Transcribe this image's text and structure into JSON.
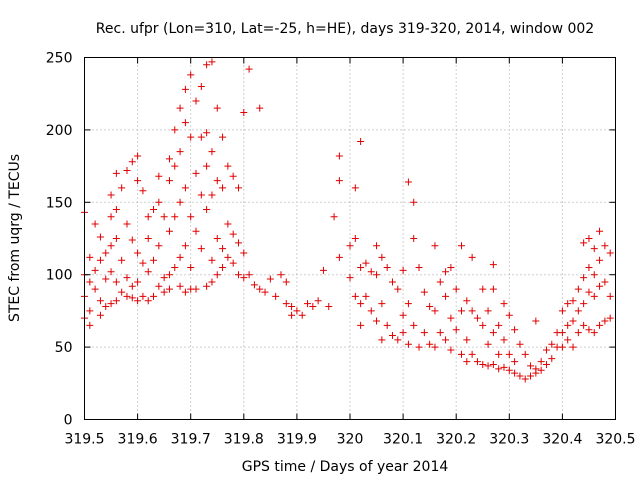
{
  "chart_data": {
    "type": "scatter",
    "title": "Rec. ufpr (Lon=310, Lat=-25, h=HE), days 319-320, 2014, window 002",
    "xlabel": "GPS time / Days of year 2014",
    "ylabel": "STEC from uqrg / TECUs",
    "xlim": [
      319.5,
      320.5
    ],
    "ylim": [
      0,
      250
    ],
    "xticks": [
      319.5,
      319.6,
      319.7,
      319.8,
      319.9,
      320.0,
      320.1,
      320.2,
      320.3,
      320.4,
      320.5
    ],
    "xtick_labels": [
      "319.5",
      "319.6",
      "319.7",
      "319.8",
      "319.9",
      "320",
      "320.1",
      "320.2",
      "320.3",
      "320.4",
      "320.5"
    ],
    "yticks": [
      0,
      50,
      100,
      150,
      200,
      250
    ],
    "ytick_labels": [
      "0",
      "50",
      "100",
      "150",
      "200",
      "250"
    ],
    "grid": true,
    "marker": "plus",
    "color": "#e00000",
    "series": [
      {
        "name": "STEC",
        "points": [
          [
            319.5,
            143
          ],
          [
            319.5,
            100
          ],
          [
            319.5,
            85
          ],
          [
            319.5,
            70
          ],
          [
            319.51,
            112
          ],
          [
            319.51,
            95
          ],
          [
            319.51,
            75
          ],
          [
            319.51,
            65
          ],
          [
            319.52,
            135
          ],
          [
            319.52,
            103
          ],
          [
            319.52,
            90
          ],
          [
            319.53,
            126
          ],
          [
            319.53,
            110
          ],
          [
            319.53,
            82
          ],
          [
            319.53,
            72
          ],
          [
            319.54,
            115
          ],
          [
            319.54,
            97
          ],
          [
            319.54,
            78
          ],
          [
            319.55,
            155
          ],
          [
            319.55,
            140
          ],
          [
            319.55,
            120
          ],
          [
            319.55,
            102
          ],
          [
            319.55,
            80
          ],
          [
            319.56,
            170
          ],
          [
            319.56,
            145
          ],
          [
            319.56,
            125
          ],
          [
            319.56,
            95
          ],
          [
            319.56,
            82
          ],
          [
            319.57,
            160
          ],
          [
            319.57,
            110
          ],
          [
            319.57,
            88
          ],
          [
            319.58,
            172
          ],
          [
            319.58,
            135
          ],
          [
            319.58,
            98
          ],
          [
            319.58,
            85
          ],
          [
            319.59,
            178
          ],
          [
            319.59,
            124
          ],
          [
            319.59,
            92
          ],
          [
            319.59,
            84
          ],
          [
            319.6,
            182
          ],
          [
            319.6,
            165
          ],
          [
            319.6,
            115
          ],
          [
            319.6,
            95
          ],
          [
            319.6,
            82
          ],
          [
            319.61,
            158
          ],
          [
            319.61,
            108
          ],
          [
            319.61,
            85
          ],
          [
            319.62,
            140
          ],
          [
            319.62,
            125
          ],
          [
            319.62,
            102
          ],
          [
            319.62,
            82
          ],
          [
            319.63,
            145
          ],
          [
            319.63,
            110
          ],
          [
            319.63,
            85
          ],
          [
            319.64,
            168
          ],
          [
            319.64,
            150
          ],
          [
            319.64,
            120
          ],
          [
            319.64,
            92
          ],
          [
            319.65,
            140
          ],
          [
            319.65,
            98
          ],
          [
            319.65,
            88
          ],
          [
            319.66,
            180
          ],
          [
            319.66,
            165
          ],
          [
            319.66,
            130
          ],
          [
            319.66,
            100
          ],
          [
            319.66,
            90
          ],
          [
            319.67,
            200
          ],
          [
            319.67,
            175
          ],
          [
            319.67,
            140
          ],
          [
            319.67,
            105
          ],
          [
            319.68,
            215
          ],
          [
            319.68,
            185
          ],
          [
            319.68,
            150
          ],
          [
            319.68,
            112
          ],
          [
            319.68,
            92
          ],
          [
            319.69,
            228
          ],
          [
            319.69,
            205
          ],
          [
            319.69,
            160
          ],
          [
            319.69,
            120
          ],
          [
            319.69,
            88
          ],
          [
            319.7,
            238
          ],
          [
            319.7,
            195
          ],
          [
            319.7,
            140
          ],
          [
            319.7,
            105
          ],
          [
            319.7,
            90
          ],
          [
            319.71,
            220
          ],
          [
            319.71,
            170
          ],
          [
            319.71,
            130
          ],
          [
            319.71,
            90
          ],
          [
            319.72,
            230
          ],
          [
            319.72,
            195
          ],
          [
            319.72,
            155
          ],
          [
            319.72,
            118
          ],
          [
            319.73,
            245
          ],
          [
            319.73,
            198
          ],
          [
            319.73,
            175
          ],
          [
            319.73,
            145
          ],
          [
            319.73,
            92
          ],
          [
            319.74,
            247
          ],
          [
            319.74,
            185
          ],
          [
            319.74,
            155
          ],
          [
            319.74,
            110
          ],
          [
            319.74,
            95
          ],
          [
            319.75,
            215
          ],
          [
            319.75,
            165
          ],
          [
            319.75,
            125
          ],
          [
            319.75,
            100
          ],
          [
            319.76,
            195
          ],
          [
            319.76,
            160
          ],
          [
            319.76,
            118
          ],
          [
            319.76,
            105
          ],
          [
            319.77,
            175
          ],
          [
            319.77,
            135
          ],
          [
            319.77,
            112
          ],
          [
            319.78,
            168
          ],
          [
            319.78,
            128
          ],
          [
            319.78,
            108
          ],
          [
            319.79,
            160
          ],
          [
            319.79,
            122
          ],
          [
            319.79,
            100
          ],
          [
            319.8,
            212
          ],
          [
            319.8,
            115
          ],
          [
            319.8,
            98
          ],
          [
            319.81,
            242
          ],
          [
            319.81,
            100
          ],
          [
            319.82,
            93
          ],
          [
            319.83,
            215
          ],
          [
            319.83,
            90
          ],
          [
            319.84,
            88
          ],
          [
            319.85,
            97
          ],
          [
            319.86,
            85
          ],
          [
            319.87,
            100
          ],
          [
            319.88,
            80
          ],
          [
            319.88,
            95
          ],
          [
            319.89,
            78
          ],
          [
            319.89,
            72
          ],
          [
            319.9,
            75
          ],
          [
            319.91,
            72
          ],
          [
            319.92,
            80
          ],
          [
            319.93,
            78
          ],
          [
            319.94,
            82
          ],
          [
            319.95,
            103
          ],
          [
            319.96,
            78
          ],
          [
            319.97,
            140
          ],
          [
            319.98,
            182
          ],
          [
            319.98,
            165
          ],
          [
            319.98,
            112
          ],
          [
            320.0,
            120
          ],
          [
            320.0,
            98
          ],
          [
            320.01,
            160
          ],
          [
            320.01,
            125
          ],
          [
            320.01,
            85
          ],
          [
            320.02,
            192
          ],
          [
            320.02,
            105
          ],
          [
            320.02,
            80
          ],
          [
            320.02,
            65
          ],
          [
            320.03,
            108
          ],
          [
            320.03,
            85
          ],
          [
            320.04,
            102
          ],
          [
            320.04,
            75
          ],
          [
            320.05,
            120
          ],
          [
            320.05,
            100
          ],
          [
            320.05,
            68
          ],
          [
            320.06,
            112
          ],
          [
            320.06,
            80
          ],
          [
            320.06,
            55
          ],
          [
            320.07,
            105
          ],
          [
            320.07,
            65
          ],
          [
            320.08,
            95
          ],
          [
            320.08,
            58
          ],
          [
            320.09,
            90
          ],
          [
            320.09,
            55
          ],
          [
            320.1,
            103
          ],
          [
            320.1,
            72
          ],
          [
            320.1,
            60
          ],
          [
            320.11,
            164
          ],
          [
            320.11,
            80
          ],
          [
            320.11,
            52
          ],
          [
            320.12,
            150
          ],
          [
            320.12,
            125
          ],
          [
            320.12,
            65
          ],
          [
            320.13,
            105
          ],
          [
            320.13,
            50
          ],
          [
            320.14,
            88
          ],
          [
            320.14,
            60
          ],
          [
            320.15,
            78
          ],
          [
            320.15,
            52
          ],
          [
            320.16,
            120
          ],
          [
            320.16,
            75
          ],
          [
            320.16,
            50
          ],
          [
            320.17,
            95
          ],
          [
            320.17,
            60
          ],
          [
            320.18,
            102
          ],
          [
            320.18,
            85
          ],
          [
            320.18,
            55
          ],
          [
            320.19,
            105
          ],
          [
            320.19,
            70
          ],
          [
            320.19,
            48
          ],
          [
            320.2,
            90
          ],
          [
            320.2,
            62
          ],
          [
            320.21,
            120
          ],
          [
            320.21,
            75
          ],
          [
            320.21,
            45
          ],
          [
            320.22,
            82
          ],
          [
            320.22,
            55
          ],
          [
            320.22,
            40
          ],
          [
            320.23,
            112
          ],
          [
            320.23,
            75
          ],
          [
            320.23,
            45
          ],
          [
            320.24,
            70
          ],
          [
            320.24,
            40
          ],
          [
            320.25,
            90
          ],
          [
            320.25,
            65
          ],
          [
            320.25,
            38
          ],
          [
            320.26,
            75
          ],
          [
            320.26,
            52
          ],
          [
            320.26,
            37
          ],
          [
            320.27,
            107
          ],
          [
            320.27,
            90
          ],
          [
            320.27,
            60
          ],
          [
            320.27,
            38
          ],
          [
            320.28,
            65
          ],
          [
            320.28,
            45
          ],
          [
            320.28,
            35
          ],
          [
            320.29,
            80
          ],
          [
            320.29,
            55
          ],
          [
            320.29,
            36
          ],
          [
            320.3,
            72
          ],
          [
            320.3,
            45
          ],
          [
            320.3,
            34
          ],
          [
            320.31,
            62
          ],
          [
            320.31,
            40
          ],
          [
            320.31,
            32
          ],
          [
            320.32,
            52
          ],
          [
            320.32,
            30
          ],
          [
            320.33,
            45
          ],
          [
            320.33,
            28
          ],
          [
            320.34,
            37
          ],
          [
            320.34,
            30
          ],
          [
            320.35,
            68
          ],
          [
            320.35,
            35
          ],
          [
            320.35,
            32
          ],
          [
            320.36,
            40
          ],
          [
            320.36,
            34
          ],
          [
            320.37,
            48
          ],
          [
            320.37,
            38
          ],
          [
            320.38,
            52
          ],
          [
            320.38,
            42
          ],
          [
            320.39,
            60
          ],
          [
            320.39,
            50
          ],
          [
            320.4,
            75
          ],
          [
            320.4,
            60
          ],
          [
            320.4,
            50
          ],
          [
            320.41,
            80
          ],
          [
            320.41,
            65
          ],
          [
            320.41,
            55
          ],
          [
            320.42,
            82
          ],
          [
            320.42,
            68
          ],
          [
            320.42,
            50
          ],
          [
            320.43,
            90
          ],
          [
            320.43,
            75
          ],
          [
            320.43,
            60
          ],
          [
            320.44,
            122
          ],
          [
            320.44,
            98
          ],
          [
            320.44,
            80
          ],
          [
            320.44,
            65
          ],
          [
            320.45,
            125
          ],
          [
            320.45,
            105
          ],
          [
            320.45,
            88
          ],
          [
            320.45,
            62
          ],
          [
            320.46,
            118
          ],
          [
            320.46,
            100
          ],
          [
            320.46,
            85
          ],
          [
            320.46,
            60
          ],
          [
            320.47,
            130
          ],
          [
            320.47,
            110
          ],
          [
            320.47,
            92
          ],
          [
            320.47,
            65
          ],
          [
            320.48,
            120
          ],
          [
            320.48,
            95
          ],
          [
            320.48,
            68
          ],
          [
            320.49,
            115
          ],
          [
            320.49,
            85
          ],
          [
            320.49,
            70
          ]
        ]
      }
    ]
  }
}
